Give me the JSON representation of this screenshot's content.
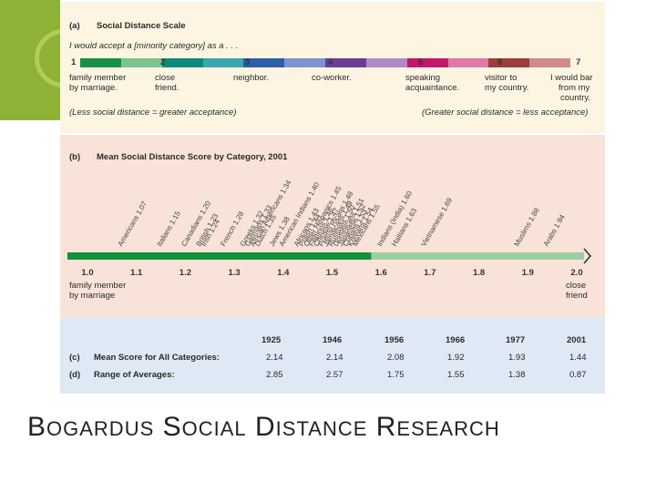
{
  "caption": {
    "first": "B",
    "first_rest": "OGARDUS",
    "second": "S",
    "second_rest": "OCIAL",
    "third": "D",
    "third_rest": "ISTANCE",
    "fourth": "R",
    "fourth_rest": "ESEARCH"
  },
  "panel_a": {
    "letter": "(a)",
    "title": "Social Distance Scale",
    "prompt": "I would accept a [minority category] as a . . .",
    "numbers": [
      "1",
      "2",
      "3",
      "4",
      "5",
      "6",
      "7"
    ],
    "labels": [
      {
        "line1": "family member",
        "line2": "by marriage."
      },
      {
        "line1": "close",
        "line2": "friend."
      },
      {
        "line1": "neighbor.",
        "line2": ""
      },
      {
        "line1": "co-worker.",
        "line2": ""
      },
      {
        "line1": "speaking",
        "line2": "acquaintance."
      },
      {
        "line1": "visitor to",
        "line2": "my country."
      },
      {
        "line1": "I would bar",
        "line2": "from my",
        "line3": "country."
      }
    ],
    "note_left": "(Less social distance = greater acceptance)",
    "note_right": "(Greater social distance = less acceptance)",
    "colors": [
      "#16904a",
      "#7cc48f",
      "#0c8a7c",
      "#3aa7b0",
      "#2d5fa8",
      "#7f93cf",
      "#6a3c97",
      "#b08ac4",
      "#c0186a",
      "#e07aa8",
      "#9a3d3d",
      "#cf8a8a"
    ]
  },
  "chart_data": {
    "type": "scatter",
    "letter": "(b)",
    "title": "Mean Social Distance Score by Category, 2001",
    "x_ticks": [
      "1.0",
      "1.1",
      "1.2",
      "1.3",
      "1.4",
      "1.5",
      "1.6",
      "1.7",
      "1.8",
      "1.9",
      "2.0"
    ],
    "xlim": [
      1.0,
      2.0
    ],
    "left_end_label": [
      "family member",
      "by marriage"
    ],
    "right_end_label": [
      "close",
      "friend"
    ],
    "points": [
      {
        "label": "Americans",
        "value": 1.07
      },
      {
        "label": "Italians",
        "value": 1.15
      },
      {
        "label": "Canadians",
        "value": 1.2
      },
      {
        "label": "British",
        "value": 1.23
      },
      {
        "label": "Irish",
        "value": 1.24
      },
      {
        "label": "French",
        "value": 1.28
      },
      {
        "label": "Greeks",
        "value": 1.32
      },
      {
        "label": "Germans",
        "value": 1.33
      },
      {
        "label": "African Americans",
        "value": 1.34
      },
      {
        "label": "Dutch",
        "value": 1.35
      },
      {
        "label": "Jews",
        "value": 1.38
      },
      {
        "label": "American Indians",
        "value": 1.4
      },
      {
        "label": "Africans",
        "value": 1.43
      },
      {
        "label": "Polish",
        "value": 1.44
      },
      {
        "label": "Other Hispanics",
        "value": 1.45
      },
      {
        "label": "Filipinos",
        "value": 1.46
      },
      {
        "label": "Chinese",
        "value": 1.47
      },
      {
        "label": "Puerto Ricans",
        "value": 1.48
      },
      {
        "label": "Jamaicans",
        "value": 1.49
      },
      {
        "label": "Russians",
        "value": 1.5
      },
      {
        "label": "Dominicans",
        "value": 1.51
      },
      {
        "label": "Japanese",
        "value": 1.52
      },
      {
        "label": "Cubans",
        "value": 1.53
      },
      {
        "label": "Koreans",
        "value": 1.54
      },
      {
        "label": "Mexicans",
        "value": 1.55
      },
      {
        "label": "Indians (India)",
        "value": 1.6
      },
      {
        "label": "Haitians",
        "value": 1.63
      },
      {
        "label": "Vietnamese",
        "value": 1.69
      },
      {
        "label": "Muslims",
        "value": 1.88
      },
      {
        "label": "Arabs",
        "value": 1.94
      }
    ]
  },
  "table": {
    "years": [
      "1925",
      "1946",
      "1956",
      "1966",
      "1977",
      "2001"
    ],
    "rows": [
      {
        "letter": "(c)",
        "label": "Mean Score for All Categories:",
        "values": [
          "2.14",
          "2.14",
          "2.08",
          "1.92",
          "1.93",
          "1.44"
        ]
      },
      {
        "letter": "(d)",
        "label": "Range of Averages:",
        "values": [
          "2.85",
          "2.57",
          "1.75",
          "1.55",
          "1.38",
          "0.87"
        ]
      }
    ]
  }
}
